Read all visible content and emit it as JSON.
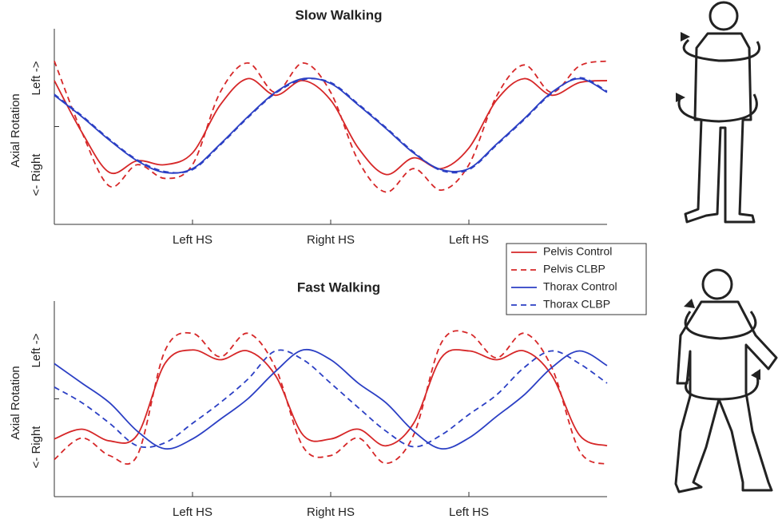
{
  "chart_data": [
    {
      "type": "line",
      "title": "Slow Walking",
      "y_label": "Axial Rotation",
      "y_label_positive": "Left ->",
      "y_label_negative": "<- Right",
      "x": [
        0,
        5,
        10,
        15,
        20,
        25,
        30,
        35,
        40,
        45,
        50,
        55,
        60,
        65,
        70,
        75,
        80,
        85,
        90,
        95,
        100
      ],
      "xlim": [
        0,
        100
      ],
      "xticks": [
        {
          "value": 25,
          "label": "Left HS"
        },
        {
          "value": 50,
          "label": "Right HS"
        },
        {
          "value": 75,
          "label": "Left HS"
        }
      ],
      "ylim": [
        -1,
        1
      ],
      "yticks": [
        {
          "value": 0,
          "label": null
        }
      ],
      "series": [
        {
          "name": "Pelvis Control",
          "color": "#d62728",
          "dashed": false,
          "values": [
            0.47,
            -0.06,
            -0.47,
            -0.35,
            -0.39,
            -0.27,
            0.22,
            0.49,
            0.32,
            0.47,
            0.27,
            -0.22,
            -0.49,
            -0.32,
            -0.43,
            -0.22,
            0.27,
            0.49,
            0.32,
            0.45,
            0.47
          ]
        },
        {
          "name": "Pelvis CLBP",
          "color": "#d62728",
          "dashed": true,
          "values": [
            0.67,
            -0.06,
            -0.61,
            -0.39,
            -0.53,
            -0.39,
            0.35,
            0.65,
            0.35,
            0.65,
            0.35,
            -0.35,
            -0.67,
            -0.43,
            -0.65,
            -0.39,
            0.31,
            0.63,
            0.35,
            0.62,
            0.67
          ]
        },
        {
          "name": "Thorax Control",
          "color": "#2b3fc4",
          "dashed": false,
          "values": [
            0.32,
            0.1,
            -0.14,
            -0.35,
            -0.47,
            -0.43,
            -0.18,
            0.1,
            0.35,
            0.49,
            0.44,
            0.22,
            -0.02,
            -0.27,
            -0.44,
            -0.43,
            -0.18,
            0.08,
            0.35,
            0.49,
            0.35
          ]
        },
        {
          "name": "Thorax CLBP",
          "color": "#2b3fc4",
          "dashed": true,
          "values": [
            0.33,
            0.11,
            -0.13,
            -0.34,
            -0.46,
            -0.44,
            -0.19,
            0.09,
            0.34,
            0.48,
            0.45,
            0.23,
            -0.01,
            -0.26,
            -0.45,
            -0.44,
            -0.19,
            0.07,
            0.34,
            0.5,
            0.36
          ]
        }
      ]
    },
    {
      "type": "line",
      "title": "Fast Walking",
      "y_label": "Axial Rotation",
      "y_label_positive": "Left ->",
      "y_label_negative": "<- Right",
      "x": [
        0,
        5,
        10,
        15,
        20,
        25,
        30,
        35,
        40,
        45,
        50,
        55,
        60,
        65,
        70,
        75,
        80,
        85,
        90,
        95,
        100
      ],
      "xlim": [
        0,
        100
      ],
      "xticks": [
        {
          "value": 25,
          "label": "Left HS"
        },
        {
          "value": 50,
          "label": "Right HS"
        },
        {
          "value": 75,
          "label": "Left HS"
        }
      ],
      "ylim": [
        -1,
        1
      ],
      "yticks": [
        {
          "value": 0,
          "label": null
        }
      ],
      "series": [
        {
          "color": "#d62728",
          "dashed": false,
          "values": [
            -0.41,
            -0.31,
            -0.43,
            -0.37,
            0.36,
            0.5,
            0.4,
            0.49,
            0.24,
            -0.37,
            -0.41,
            -0.31,
            -0.48,
            -0.25,
            0.42,
            0.49,
            0.4,
            0.49,
            0.24,
            -0.37,
            -0.48
          ]
        },
        {
          "color": "#d62728",
          "dashed": true,
          "values": [
            -0.62,
            -0.4,
            -0.58,
            -0.58,
            0.49,
            0.67,
            0.43,
            0.67,
            0.32,
            -0.49,
            -0.58,
            -0.4,
            -0.66,
            -0.37,
            0.57,
            0.67,
            0.42,
            0.67,
            0.32,
            -0.53,
            -0.67
          ]
        },
        {
          "color": "#2b3fc4",
          "dashed": false,
          "values": [
            0.36,
            0.16,
            -0.04,
            -0.33,
            -0.51,
            -0.41,
            -0.21,
            0.0,
            0.28,
            0.5,
            0.4,
            0.16,
            -0.04,
            -0.33,
            -0.51,
            -0.4,
            -0.18,
            0.04,
            0.32,
            0.49,
            0.34
          ]
        },
        {
          "color": "#2b3fc4",
          "dashed": true,
          "values": [
            0.12,
            -0.04,
            -0.25,
            -0.48,
            -0.45,
            -0.25,
            -0.04,
            0.2,
            0.49,
            0.4,
            0.16,
            -0.09,
            -0.33,
            -0.49,
            -0.37,
            -0.16,
            0.04,
            0.32,
            0.49,
            0.36,
            0.16
          ]
        }
      ]
    }
  ]
}
